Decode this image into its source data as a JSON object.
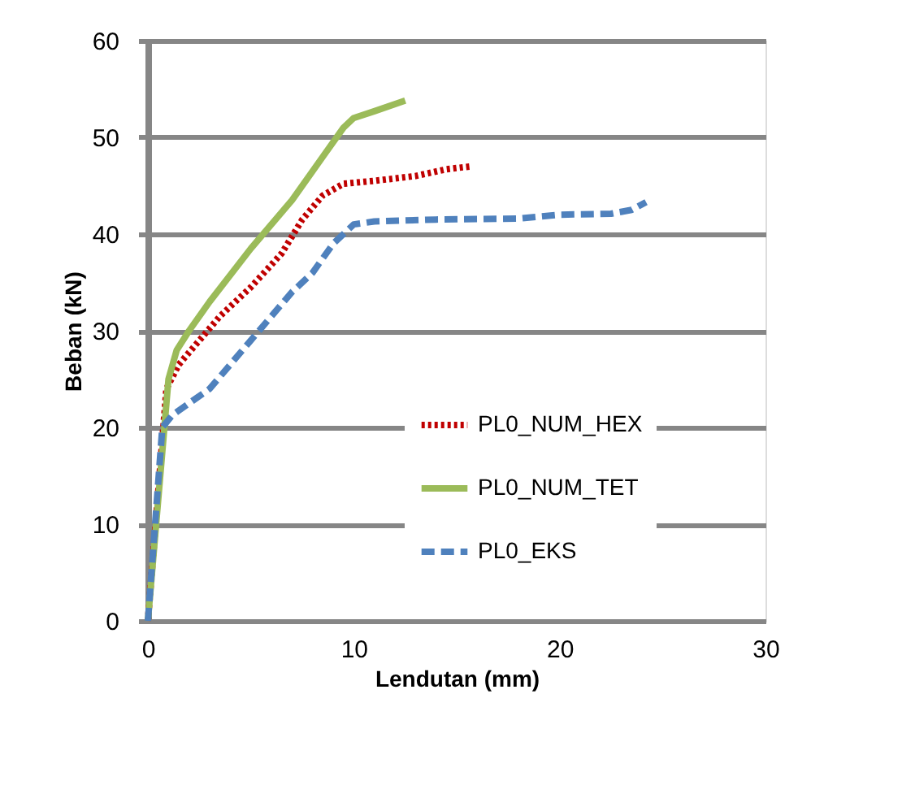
{
  "chart_data": {
    "type": "line",
    "xlabel": "Lendutan (mm)",
    "ylabel": "Beban (kN)",
    "xlim": [
      0,
      30
    ],
    "xticks": [
      0,
      10,
      20,
      30
    ],
    "ylim": [
      0,
      60
    ],
    "yticks": [
      0,
      10,
      20,
      30,
      40,
      50,
      60
    ],
    "grid": "y",
    "legend": "right",
    "series": [
      {
        "name": "PL0_NUM_HEX",
        "color": "#c00000",
        "line_style": "dotted",
        "x": [
          0,
          0.9,
          1.5,
          2.5,
          3.5,
          5,
          6.5,
          7.5,
          8.5,
          9.5,
          11,
          13,
          14.5,
          15.7
        ],
        "values": [
          0,
          24,
          26.5,
          29,
          31.5,
          34.5,
          38,
          41.5,
          44,
          45.2,
          45.5,
          46,
          46.7,
          47
        ]
      },
      {
        "name": "PL0_NUM_TET",
        "color": "#9bbb59",
        "line_style": "solid",
        "x": [
          0,
          1,
          1.4,
          2,
          3,
          5,
          7,
          8.5,
          9.5,
          10,
          11,
          12.5
        ],
        "values": [
          0,
          25,
          28,
          30,
          33,
          38.5,
          43.5,
          48,
          51,
          52,
          52.7,
          53.8
        ]
      },
      {
        "name": "PL0_EKS",
        "color": "#4f81bd",
        "line_style": "dashed",
        "x": [
          0,
          0.7,
          1.2,
          2,
          3,
          4,
          5,
          6,
          7,
          8,
          9,
          10,
          11,
          14,
          18,
          20,
          22.5,
          23.5,
          24.2
        ],
        "values": [
          0,
          20,
          21.3,
          22.5,
          24,
          26.5,
          29,
          31.5,
          34,
          36,
          39,
          41,
          41.3,
          41.5,
          41.6,
          42,
          42.1,
          42.5,
          43.3
        ]
      }
    ]
  }
}
